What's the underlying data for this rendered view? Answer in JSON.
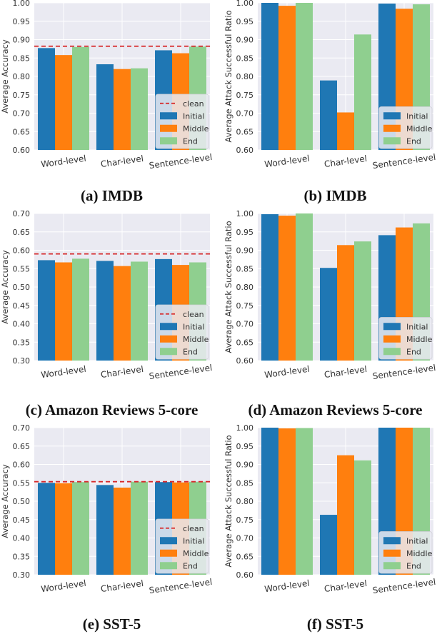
{
  "colors": {
    "initial": "#1f77b4",
    "middle": "#ff7f0e",
    "end": "#8fcf8f",
    "clean": "#d62728",
    "plot_bg": "#eaeaf2",
    "grid": "#ffffff"
  },
  "captions": [
    "(a) IMDB",
    "(b) IMDB",
    "(c) Amazon Reviews 5-core",
    "(d) Amazon Reviews 5-core",
    "(e) SST-5",
    "(f) SST-5"
  ],
  "chart_data": [
    {
      "type": "bar",
      "ylabel": "Average Accuracy",
      "ylim": [
        0.6,
        1.0
      ],
      "yticks": [
        "0.60",
        "0.65",
        "0.70",
        "0.75",
        "0.80",
        "0.85",
        "0.90",
        "0.95",
        "1.00"
      ],
      "categories": [
        "Word-level",
        "Char-level",
        "Sentence-level"
      ],
      "series": [
        {
          "name": "Initial",
          "values": [
            0.877,
            0.833,
            0.871
          ]
        },
        {
          "name": "Middle",
          "values": [
            0.858,
            0.82,
            0.863
          ]
        },
        {
          "name": "End",
          "values": [
            0.88,
            0.822,
            0.881
          ]
        }
      ],
      "clean": {
        "name": "clean",
        "value": 0.882
      },
      "legend": "lower-right"
    },
    {
      "type": "bar",
      "ylabel": "Average Attack Successful Ratio",
      "ylim": [
        0.6,
        1.0
      ],
      "yticks": [
        "0.60",
        "0.65",
        "0.70",
        "0.75",
        "0.80",
        "0.85",
        "0.90",
        "0.95",
        "1.00"
      ],
      "categories": [
        "Word-level",
        "Char-level",
        "Sentence-level"
      ],
      "series": [
        {
          "name": "Initial",
          "values": [
            1.0,
            0.789,
            0.998
          ]
        },
        {
          "name": "Middle",
          "values": [
            0.992,
            0.702,
            0.984
          ]
        },
        {
          "name": "End",
          "values": [
            1.0,
            0.914,
            0.996
          ]
        }
      ],
      "legend": "lower-right"
    },
    {
      "type": "bar",
      "ylabel": "Average Accuracy",
      "ylim": [
        0.3,
        0.7
      ],
      "yticks": [
        "0.30",
        "0.35",
        "0.40",
        "0.45",
        "0.50",
        "0.55",
        "0.60",
        "0.65",
        "0.70"
      ],
      "categories": [
        "Word-level",
        "Char-level",
        "Sentence-level"
      ],
      "series": [
        {
          "name": "Initial",
          "values": [
            0.573,
            0.571,
            0.576
          ]
        },
        {
          "name": "Middle",
          "values": [
            0.567,
            0.557,
            0.56
          ]
        },
        {
          "name": "End",
          "values": [
            0.577,
            0.569,
            0.567
          ]
        }
      ],
      "clean": {
        "name": "clean",
        "value": 0.59
      },
      "legend": "lower-right"
    },
    {
      "type": "bar",
      "ylabel": "Average Attack Successful Ratio",
      "ylim": [
        0.6,
        1.0
      ],
      "yticks": [
        "0.60",
        "0.65",
        "0.70",
        "0.75",
        "0.80",
        "0.85",
        "0.90",
        "0.95",
        "1.00"
      ],
      "categories": [
        "Word-level",
        "Char-level",
        "Sentence-level"
      ],
      "series": [
        {
          "name": "Initial",
          "values": [
            0.998,
            0.852,
            0.941
          ]
        },
        {
          "name": "Middle",
          "values": [
            0.994,
            0.914,
            0.962
          ]
        },
        {
          "name": "End",
          "values": [
            1.0,
            0.924,
            0.973
          ]
        }
      ],
      "legend": "lower-right"
    },
    {
      "type": "bar",
      "ylabel": "Average Accuracy",
      "ylim": [
        0.3,
        0.7
      ],
      "yticks": [
        "0.30",
        "0.35",
        "0.40",
        "0.45",
        "0.50",
        "0.55",
        "0.60",
        "0.65",
        "0.70"
      ],
      "categories": [
        "Word-level",
        "Char-level",
        "Sentence-level"
      ],
      "series": [
        {
          "name": "Initial",
          "values": [
            0.55,
            0.544,
            0.552
          ]
        },
        {
          "name": "Middle",
          "values": [
            0.549,
            0.537,
            0.551
          ]
        },
        {
          "name": "End",
          "values": [
            0.552,
            0.553,
            0.553
          ]
        }
      ],
      "clean": {
        "name": "clean",
        "value": 0.553
      },
      "legend": "lower-right"
    },
    {
      "type": "bar",
      "ylabel": "Average Attack Successful Ratio",
      "ylim": [
        0.6,
        1.0
      ],
      "yticks": [
        "0.60",
        "0.65",
        "0.70",
        "0.75",
        "0.80",
        "0.85",
        "0.90",
        "0.95",
        "1.00"
      ],
      "categories": [
        "Word-level",
        "Char-level",
        "Sentence-level"
      ],
      "series": [
        {
          "name": "Initial",
          "values": [
            1.0,
            0.763,
            1.0
          ]
        },
        {
          "name": "Middle",
          "values": [
            0.998,
            0.925,
            1.0
          ]
        },
        {
          "name": "End",
          "values": [
            0.999,
            0.911,
            1.0
          ]
        }
      ],
      "legend": "lower-right"
    }
  ]
}
